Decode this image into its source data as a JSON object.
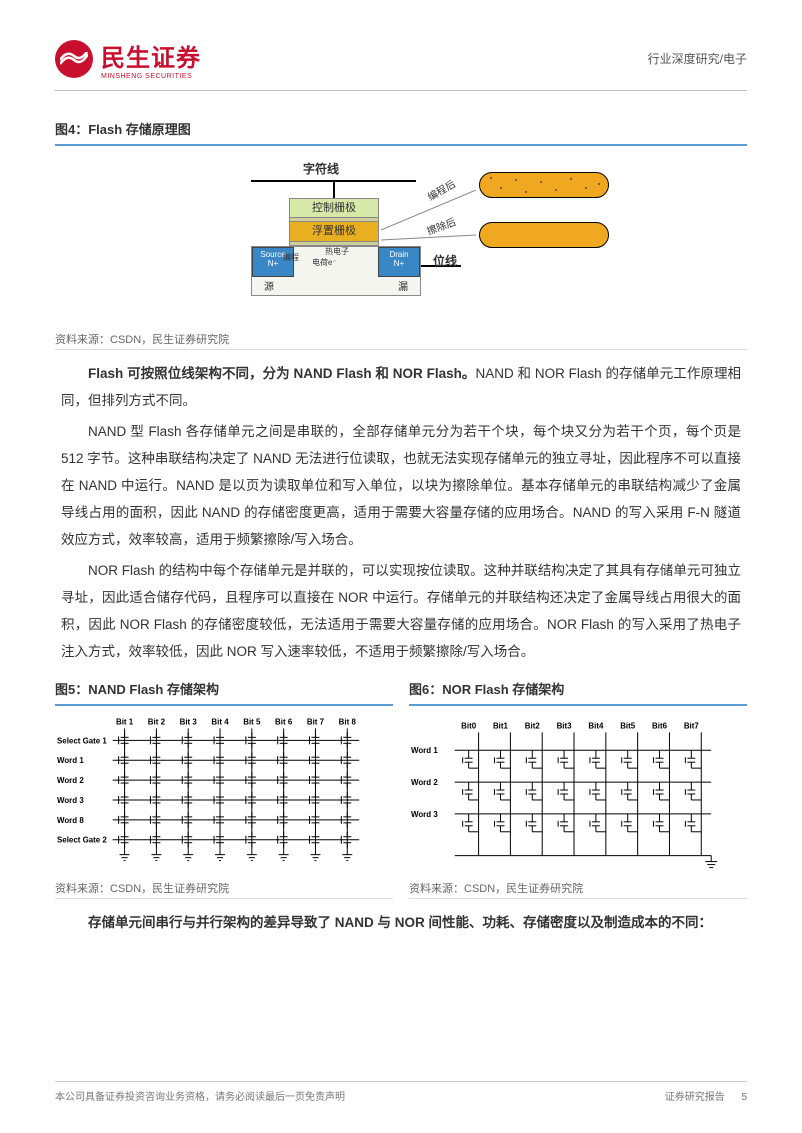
{
  "header": {
    "logo_cn": "民生证券",
    "logo_en": "MINSHENG SECURITIES",
    "breadcrumb": "行业深度研究/电子"
  },
  "fig4": {
    "title": "图4：Flash 存储原理图",
    "wordline": "字符线",
    "ctrl_gate": "控制栅极",
    "float_gate": "浮置栅极",
    "source_top": "Source",
    "source_n": "N+",
    "drain_top": "Drain",
    "drain_n": "N+",
    "electron": "电荷e⁻",
    "bitline": "位线",
    "after_prog": "编程后",
    "after_erase": "擦除后",
    "src_lbl": "源",
    "drn_lbl": "漏",
    "prog_lbl": "编程",
    "fill_lbl": "热电子",
    "caption": "资料来源：CSDN，民生证券研究院"
  },
  "para1": {
    "lead": "Flash 可按照位线架构不同，分为 NAND Flash 和 NOR Flash。",
    "rest": "NAND 和 NOR Flash 的存储单元工作原理相同，但排列方式不同。"
  },
  "para2": "NAND 型 Flash 各存储单元之间是串联的，全部存储单元分为若干个块，每个块又分为若干个页，每个页是 512 字节。这种串联结构决定了 NAND 无法进行位读取，也就无法实现存储单元的独立寻址，因此程序不可以直接在 NAND 中运行。NAND 是以页为读取单位和写入单位，以块为擦除单位。基本存储单元的串联结构减少了金属导线占用的面积，因此 NAND 的存储密度更高，适用于需要大容量存储的应用场合。NAND 的写入采用 F-N 隧道效应方式，效率较高，适用于频繁擦除/写入场合。",
  "para3": "NOR Flash 的结构中每个存储单元是并联的，可以实现按位读取。这种并联结构决定了其具有存储单元可独立寻址，因此适合储存代码，且程序可以直接在 NOR 中运行。存储单元的并联结构还决定了金属导线占用很大的面积，因此 NOR Flash 的存储密度较低，无法适用于需要大容量存储的应用场合。NOR Flash 的写入采用了热电子注入方式，效率较低，因此 NOR 写入速率较低，不适用于频繁擦除/写入场合。",
  "fig5": {
    "title": "图5：NAND Flash 存储架构",
    "bits": [
      "Bit 1",
      "Bit 2",
      "Bit 3",
      "Bit 4",
      "Bit 5",
      "Bit 6",
      "Bit 7",
      "Bit 8"
    ],
    "rows": [
      "Select Gate 1",
      "Word 1",
      "Word 2",
      "Word 3",
      "Word 8",
      "Select Gate 2"
    ],
    "caption": "资料来源：CSDN，民生证券研究院"
  },
  "fig6": {
    "title": "图6：NOR Flash 存储架构",
    "bits": [
      "Bit0",
      "Bit1",
      "Bit2",
      "Bit3",
      "Bit4",
      "Bit5",
      "Bit6",
      "Bit7"
    ],
    "rows": [
      "Word 1",
      "Word 2",
      "Word 3"
    ],
    "caption": "资料来源：CSDN，民生证券研究院"
  },
  "para4": {
    "lead": "存储单元间串行与并行架构的差异导致了 NAND 与 NOR 间性能、功耗、存储密度以及制造成本的不同："
  },
  "footer": {
    "left": "本公司具备证券投资咨询业务资格，请务必阅读最后一页免责声明",
    "right": "证券研究报告",
    "page": "5"
  },
  "style": {
    "accent": "#5b9bd5",
    "brand": "#c8102e"
  }
}
